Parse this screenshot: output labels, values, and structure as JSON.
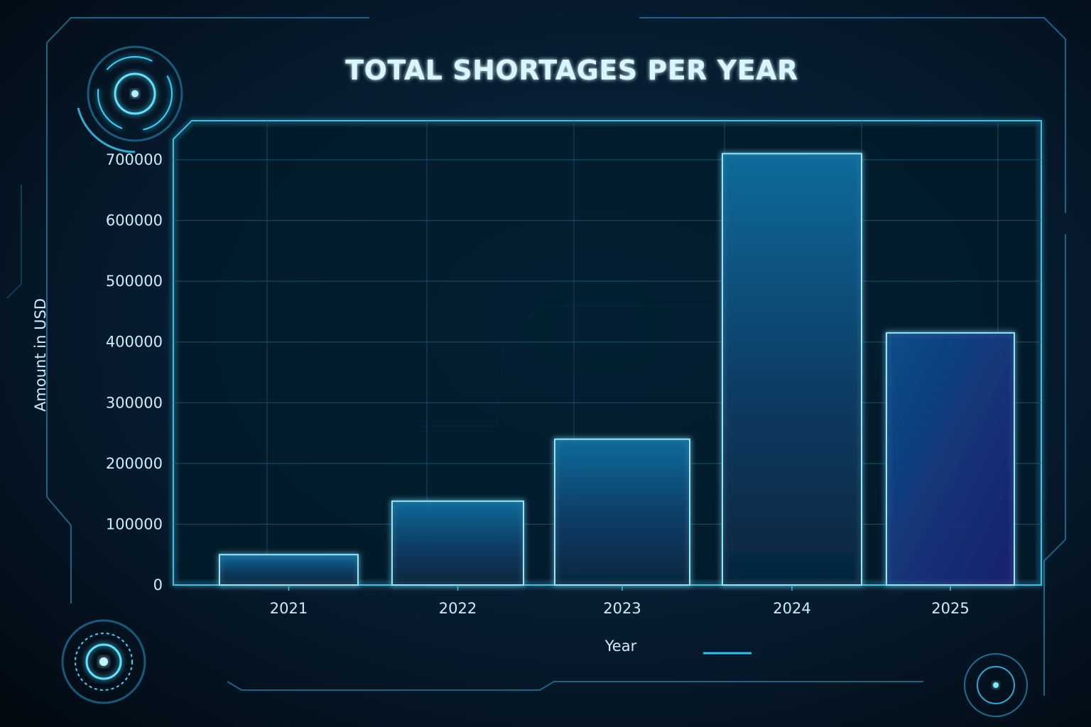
{
  "chart_data": {
    "type": "bar",
    "title": "TOTAL SHORTAGES PER YEAR",
    "xlabel": "Year",
    "ylabel": "Amount in USD",
    "categories": [
      "2021",
      "2022",
      "2023",
      "2024",
      "2025"
    ],
    "values": [
      50000,
      138000,
      240000,
      710000,
      415000
    ],
    "yticks": [
      "0",
      "100000",
      "200000",
      "300000",
      "400000",
      "500000",
      "600000",
      "700000"
    ],
    "ylim": [
      0,
      760000
    ],
    "grid": true,
    "legend": "none"
  },
  "colors": {
    "background": "#03101c",
    "accent": "#35d6ff",
    "bar_stroke": "#8fe8ff",
    "grid": "#1f5f7a",
    "text": "#c9eeff"
  },
  "decor": {
    "icons": [
      "radar-ring-icon",
      "target-dial-icon",
      "circuit-trace-icon"
    ]
  }
}
